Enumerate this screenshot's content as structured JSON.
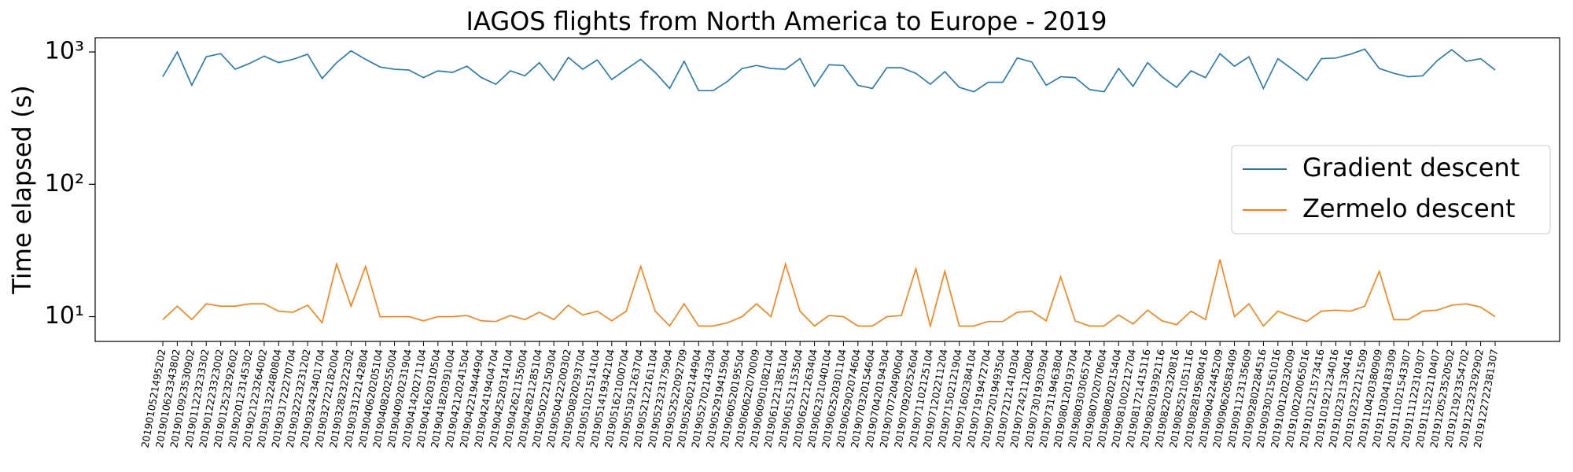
{
  "chart_data": {
    "type": "line",
    "title": "IAGOS flights from North America to Europe - 2019",
    "y_label": "Time elapsed (s)",
    "y_scale": "log",
    "legend_position": "center right",
    "ylim": [
      6.5,
      1280
    ],
    "yticks": [
      {
        "value": 10,
        "label": "10¹"
      },
      {
        "value": 100,
        "label": "10²"
      },
      {
        "value": 1000,
        "label": "10³"
      }
    ],
    "categories": [
      "2019010521495202",
      "2019010623343802",
      "2019010923530902",
      "2019011223233302",
      "2019012223323002",
      "2019012523292602",
      "2019020123145302",
      "2019021223264002",
      "2019031322480804",
      "2019031722270704",
      "2019032223231202",
      "2019032423401704",
      "2019032722182004",
      "2019032823222302",
      "2019033122142804",
      "2019040620205104",
      "2019040820255004",
      "2019040920231904",
      "2019041420271104",
      "2019041620310504",
      "2019041820391004",
      "2019042120241504",
      "2019042219444904",
      "2019042419404704",
      "2019042520314104",
      "2019042621155004",
      "2019042821285104",
      "2019050222150304",
      "2019050422200302",
      "2019050820293704",
      "2019051021514104",
      "2019051419342104",
      "2019051621000704",
      "2019051921263704",
      "2019052122161104",
      "2019052323175904",
      "2019052522092709",
      "2019052602144904",
      "2019052702143304",
      "2019052919415904",
      "2019060520195504",
      "2019060622070009",
      "2019060901082104",
      "2019061221385104",
      "2019061521153504",
      "2019062221263404",
      "2019062321040104",
      "2019062520301104",
      "2019062902074604",
      "2019070320154604",
      "2019070420194304",
      "2019070720490604",
      "2019070920252604",
      "2019071102125104",
      "2019071202211204",
      "2019071502121904",
      "2019071602384104",
      "2019071919472704",
      "2019072019493504",
      "2019072121410304",
      "2019072421120804",
      "2019073019303904",
      "2019073119463804",
      "2019080120193704",
      "2019080303065704",
      "2019080702070604",
      "2019080820215404",
      "2019081002212704",
      "2019081721415116",
      "2019082019392116",
      "2019082202320816",
      "2019082521051116",
      "2019082819580416",
      "2019090422445209",
      "2019090620583409",
      "2019091123135609",
      "2019092802284516",
      "2019093021561016",
      "2019100120232009",
      "2019100220065016",
      "2019101221573416",
      "2019101921234016",
      "2019102321330416",
      "2019102322121509",
      "2019110420380909",
      "2019110304183309",
      "2019111021543307",
      "2019111122310307",
      "2019111522110407",
      "2019120523520502",
      "2019121923354702",
      "2019122323292902",
      "2019122722381307"
    ],
    "series": [
      {
        "name": "Gradient descent",
        "color": "#1f77b4",
        "values": [
          650,
          1000,
          560,
          920,
          970,
          740,
          820,
          930,
          830,
          880,
          960,
          630,
          830,
          1020,
          880,
          770,
          740,
          730,
          640,
          720,
          700,
          780,
          640,
          570,
          720,
          660,
          830,
          610,
          910,
          740,
          870,
          620,
          740,
          880,
          700,
          530,
          850,
          510,
          510,
          600,
          750,
          790,
          750,
          740,
          890,
          550,
          800,
          790,
          560,
          530,
          760,
          760,
          690,
          570,
          710,
          540,
          500,
          590,
          590,
          900,
          840,
          560,
          650,
          640,
          520,
          500,
          750,
          550,
          830,
          650,
          540,
          720,
          640,
          970,
          780,
          920,
          530,
          890,
          740,
          610,
          890,
          900,
          960,
          1050,
          750,
          690,
          650,
          660,
          860,
          1040,
          850,
          890,
          730
        ]
      },
      {
        "name": "Zermelo descent",
        "color": "#ff7f0e",
        "values": [
          9.5,
          12,
          9.5,
          12.5,
          12,
          12,
          12.5,
          12.5,
          11,
          10.8,
          12.2,
          9,
          25,
          12,
          24,
          10,
          10,
          10,
          9.3,
          10,
          10,
          10.2,
          9.3,
          9.2,
          10.2,
          9.5,
          10.8,
          9.5,
          12.2,
          10.3,
          11,
          9.3,
          11,
          24,
          11,
          8.5,
          12.5,
          8.5,
          8.5,
          9,
          10,
          12.5,
          10,
          25,
          11,
          8.5,
          10.2,
          10,
          8.5,
          8.5,
          10,
          10.2,
          23,
          8.5,
          22,
          8.5,
          8.5,
          9.2,
          9.2,
          10.8,
          11,
          9.3,
          20,
          9.3,
          8.5,
          8.5,
          10.3,
          8.8,
          11.2,
          9.3,
          8.7,
          11,
          9.5,
          27,
          10,
          12.5,
          8.5,
          11,
          10,
          9.2,
          11,
          11.2,
          11,
          12,
          22,
          9.5,
          9.5,
          11,
          11.2,
          12.2,
          12.5,
          11.8,
          10
        ]
      }
    ]
  }
}
